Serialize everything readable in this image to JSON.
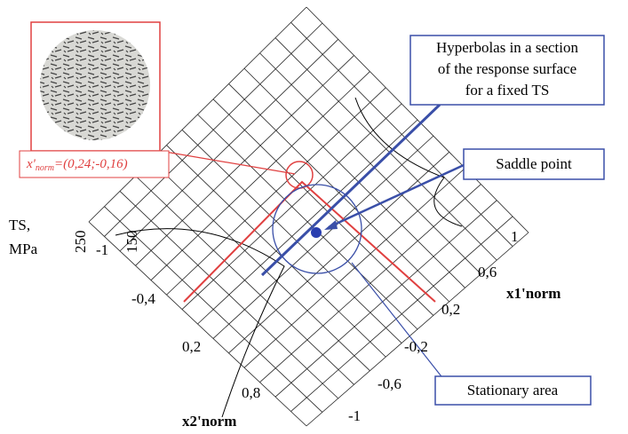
{
  "callouts": {
    "hyperbolas": {
      "lines": [
        "Hyperbolas in a section",
        "of the response surface",
        "for a fixed TS"
      ]
    },
    "saddle": {
      "text": "Saddle point"
    },
    "stationary": {
      "text": "Stationary area"
    }
  },
  "annotation": {
    "prefix": "x'",
    "subscript": "norm",
    "value": "=(0,24;-0,16)"
  },
  "z_axis": {
    "label_lines": [
      "TS,",
      "MPa"
    ],
    "ticks": [
      "250",
      "150"
    ]
  },
  "x2_axis": {
    "label": "x2'norm",
    "ticks": [
      "-1",
      "-0,4",
      "0,2",
      "0,8"
    ]
  },
  "x1_axis": {
    "label": "x1'norm",
    "ticks": [
      "1",
      "0,6",
      "0,2",
      "-0,2",
      "-0,6",
      "-1"
    ]
  }
}
